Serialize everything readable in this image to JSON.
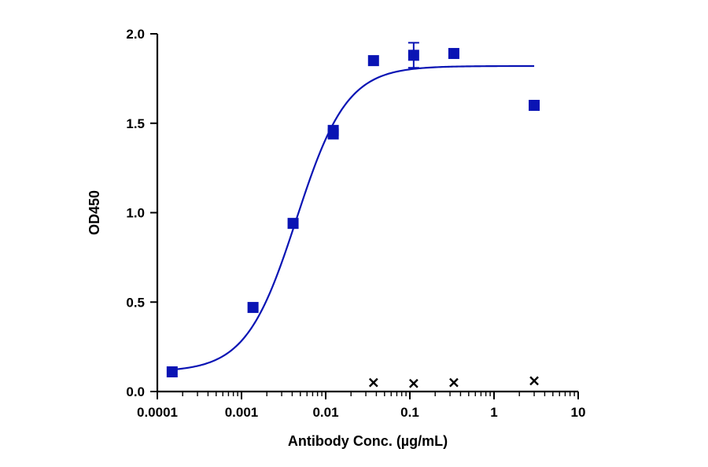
{
  "chart_data": {
    "type": "scatter",
    "title": "",
    "xlabel": "Antibody Conc. (µg/mL)",
    "ylabel": "OD450",
    "x_scale": "log",
    "xlim": [
      0.0001,
      10
    ],
    "ylim": [
      0,
      2.0
    ],
    "x_ticks": [
      {
        "value": 0.0001,
        "label": "0.0001"
      },
      {
        "value": 0.001,
        "label": "0.001"
      },
      {
        "value": 0.01,
        "label": "0.01"
      },
      {
        "value": 0.1,
        "label": "0.1"
      },
      {
        "value": 1,
        "label": "1"
      },
      {
        "value": 10,
        "label": "10"
      }
    ],
    "y_ticks": [
      {
        "value": 0,
        "label": "0.0"
      },
      {
        "value": 0.5,
        "label": "0.5"
      },
      {
        "value": 1.0,
        "label": "1.0"
      },
      {
        "value": 1.5,
        "label": "1.5"
      },
      {
        "value": 2.0,
        "label": "2.0"
      }
    ],
    "grid": false,
    "legend": "none",
    "series": [
      {
        "marker": "square",
        "color": "#0a14b4",
        "points": [
          {
            "x": 0.00015,
            "y": 0.11
          },
          {
            "x": 0.00137,
            "y": 0.47
          },
          {
            "x": 0.0041,
            "y": 0.94
          },
          {
            "x": 0.0123,
            "y": 1.46
          },
          {
            "x": 0.0123,
            "y": 1.44
          },
          {
            "x": 0.037,
            "y": 1.85
          },
          {
            "x": 0.111,
            "y": 1.88,
            "err": 0.07
          },
          {
            "x": 0.333,
            "y": 1.89
          },
          {
            "x": 3.0,
            "y": 1.6
          }
        ],
        "fit": {
          "model": "4PL",
          "bottom": 0.11,
          "top": 1.82,
          "ec50": 0.0045,
          "hill": 1.45,
          "x_range": [
            0.00015,
            3.0
          ],
          "color": "#0a14b4"
        }
      },
      {
        "marker": "x",
        "color": "#000000",
        "points": [
          {
            "x": 0.037,
            "y": 0.05
          },
          {
            "x": 0.111,
            "y": 0.045
          },
          {
            "x": 0.333,
            "y": 0.05
          },
          {
            "x": 3.0,
            "y": 0.06
          }
        ]
      }
    ]
  }
}
